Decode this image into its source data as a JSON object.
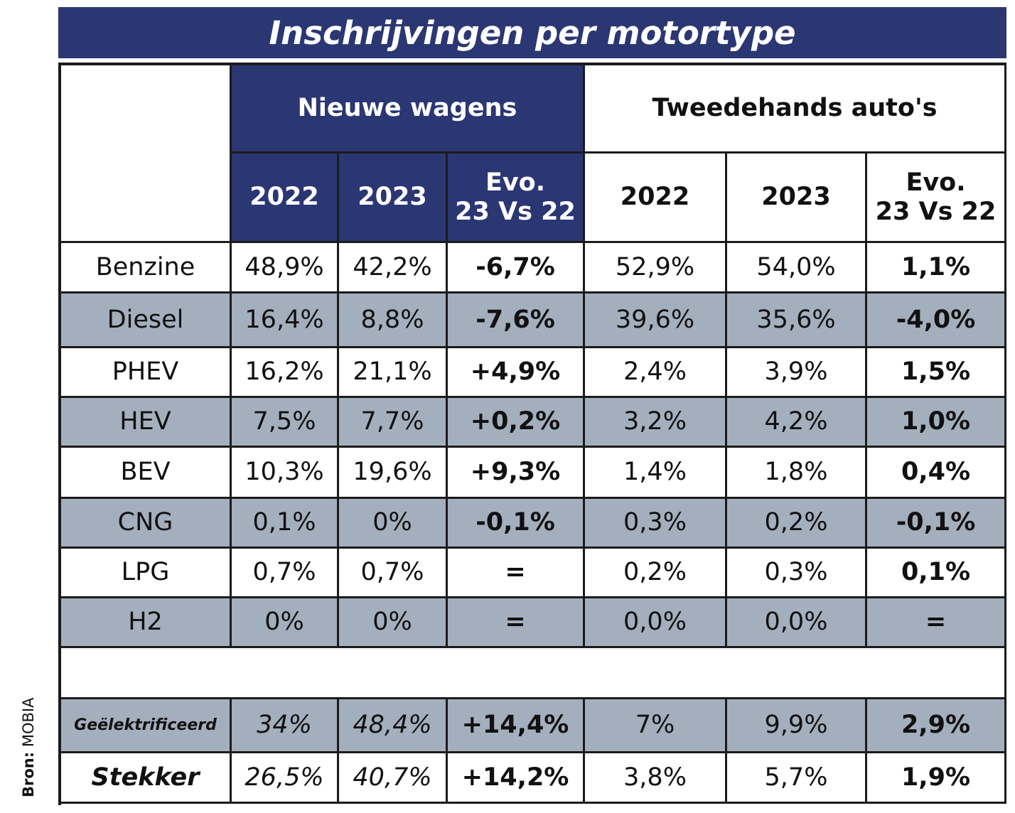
{
  "title": "Inschrijvingen per motortype",
  "source_label": "Bron:",
  "source_name": "MOBIA",
  "groups": {
    "new": "Nieuwe wagens",
    "used": "Tweedehands auto's"
  },
  "columns": {
    "new_2022": "2022",
    "new_2023": "2023",
    "new_evo": "Evo.\n23 Vs 22",
    "used_2022": "2022",
    "used_2023": "2023",
    "used_evo": "Evo.\n23 Vs 22"
  },
  "rows": [
    {
      "label": "Benzine",
      "values": [
        "48,9%",
        "42,2%",
        "-6,7%",
        "52,9%",
        "54,0%",
        "1,1%"
      ]
    },
    {
      "label": "Diesel",
      "values": [
        "16,4%",
        "8,8%",
        "-7,6%",
        "39,6%",
        "35,6%",
        "-4,0%"
      ]
    },
    {
      "label": "PHEV",
      "values": [
        "16,2%",
        "21,1%",
        "+4,9%",
        "2,4%",
        "3,9%",
        "1,5%"
      ]
    },
    {
      "label": "HEV",
      "values": [
        "7,5%",
        "7,7%",
        "+0,2%",
        "3,2%",
        "4,2%",
        "1,0%"
      ]
    },
    {
      "label": "BEV",
      "values": [
        "10,3%",
        "19,6%",
        "+9,3%",
        "1,4%",
        "1,8%",
        "0,4%"
      ]
    },
    {
      "label": "CNG",
      "values": [
        "0,1%",
        "0%",
        "-0,1%",
        "0,3%",
        "0,2%",
        "-0,1%"
      ]
    },
    {
      "label": "LPG",
      "values": [
        "0,7%",
        "0,7%",
        "=",
        "0,2%",
        "0,3%",
        "0,1%"
      ]
    },
    {
      "label": "H2",
      "values": [
        "0%",
        "0%",
        "=",
        "0,0%",
        "0,0%",
        "="
      ]
    }
  ],
  "summary": [
    {
      "label": "Geëlektrificeerd",
      "values": [
        "34%",
        "48,4%",
        "+14,4%",
        "7%",
        "9,9%",
        "2,9%"
      ]
    },
    {
      "label": "Stekker",
      "values": [
        "26,5%",
        "40,7%",
        "+14,2%",
        "3,8%",
        "5,7%",
        "1,9%"
      ]
    }
  ],
  "colors": {
    "navy": "#2b3773",
    "row_grey": "#a4afbe",
    "border": "#1b1b1b"
  }
}
